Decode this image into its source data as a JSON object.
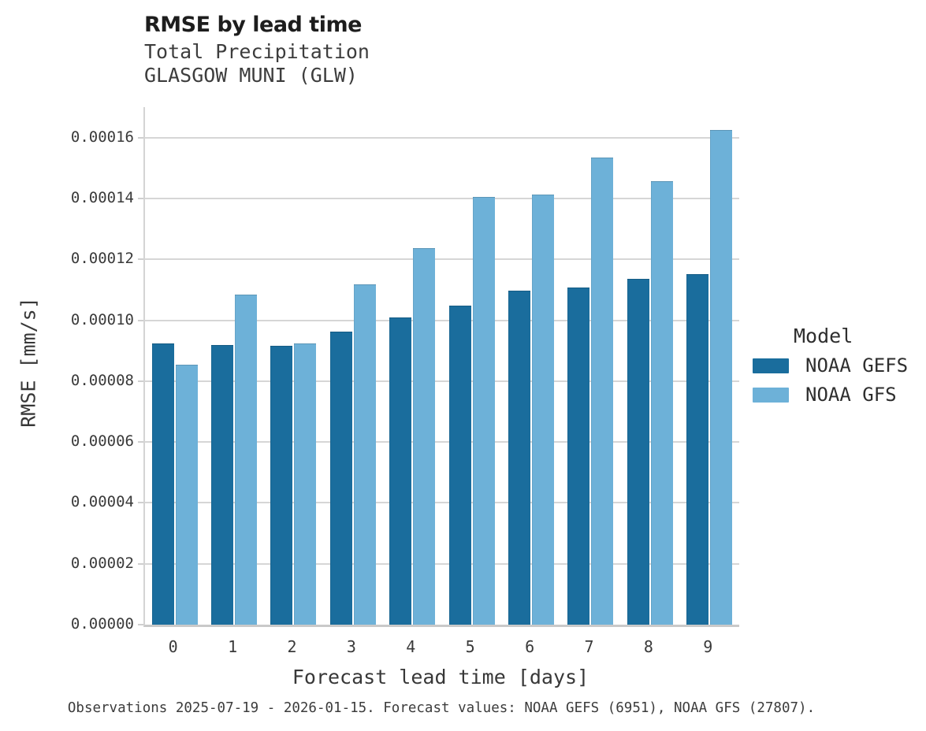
{
  "header": {
    "title": "RMSE by lead time",
    "subtitle1": "Total Precipitation",
    "subtitle2": "GLASGOW MUNI (GLW)"
  },
  "legend": {
    "title": "Model",
    "items": [
      {
        "label": "NOAA GEFS",
        "color": "#1a6d9d"
      },
      {
        "label": "NOAA GFS",
        "color": "#6db1d8"
      }
    ]
  },
  "footer": {
    "note": "Observations 2025-07-19 - 2026-01-15. Forecast values: NOAA GEFS (6951), NOAA GFS (27807)."
  },
  "chart_data": {
    "type": "bar",
    "title": "RMSE by lead time",
    "subtitle": [
      "Total Precipitation",
      "GLASGOW MUNI (GLW)"
    ],
    "categories": [
      "0",
      "1",
      "2",
      "3",
      "4",
      "5",
      "6",
      "7",
      "8",
      "9"
    ],
    "series": [
      {
        "name": "NOAA GEFS",
        "color": "#1a6d9d",
        "values": [
          9.24e-05,
          9.19e-05,
          9.15e-05,
          9.62e-05,
          0.000101,
          0.0001048,
          0.0001096,
          0.0001107,
          0.0001135,
          0.0001152
        ]
      },
      {
        "name": "NOAA GFS",
        "color": "#6db1d8",
        "values": [
          8.55e-05,
          0.0001085,
          9.24e-05,
          0.0001117,
          0.0001236,
          0.0001405,
          0.0001413,
          0.0001535,
          0.0001456,
          0.0001626
        ]
      }
    ],
    "xlabel": "Forecast lead time [days]",
    "ylabel": "RMSE [mm/s]",
    "ylim": [
      0,
      0.00017
    ],
    "ytick_step": 2e-05,
    "ytick_format_decimals": 5,
    "grid": true,
    "legend_position": "right"
  }
}
